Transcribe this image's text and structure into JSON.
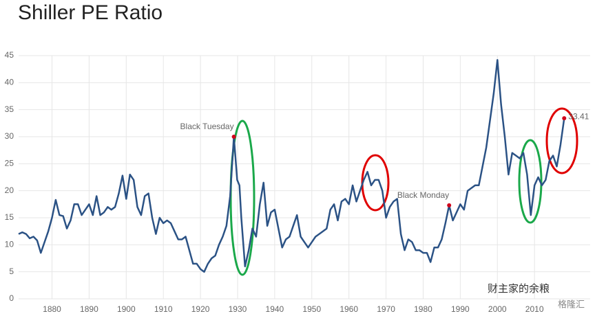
{
  "chart_data": {
    "type": "line",
    "title": "Shiller PE Ratio",
    "x": [
      1871,
      1872,
      1873,
      1874,
      1875,
      1876,
      1877,
      1878,
      1879,
      1880,
      1881,
      1882,
      1883,
      1884,
      1885,
      1886,
      1887,
      1888,
      1889,
      1890,
      1891,
      1892,
      1893,
      1894,
      1895,
      1896,
      1897,
      1898,
      1899,
      1900,
      1901,
      1902,
      1903,
      1904,
      1905,
      1906,
      1907,
      1908,
      1909,
      1910,
      1911,
      1912,
      1913,
      1914,
      1915,
      1916,
      1917,
      1918,
      1919,
      1920,
      1921,
      1922,
      1923,
      1924,
      1925,
      1926,
      1927,
      1928,
      1929,
      1929.9,
      1930.5,
      1931,
      1932,
      1933,
      1934,
      1935,
      1936,
      1937,
      1938,
      1939,
      1940,
      1941,
      1942,
      1943,
      1944,
      1945,
      1946,
      1947,
      1948,
      1949,
      1950,
      1951,
      1952,
      1953,
      1954,
      1955,
      1956,
      1957,
      1958,
      1959,
      1960,
      1961,
      1962,
      1963,
      1964,
      1965,
      1966,
      1967,
      1968,
      1969,
      1970,
      1971,
      1972,
      1973,
      1974,
      1975,
      1976,
      1977,
      1978,
      1979,
      1980,
      1981,
      1982,
      1983,
      1984,
      1985,
      1986,
      1987,
      1988,
      1989,
      1990,
      1991,
      1992,
      1993,
      1994,
      1995,
      1996,
      1997,
      1998,
      1999,
      2000,
      2001,
      2002,
      2003,
      2004,
      2005,
      2006,
      2007,
      2008,
      2009,
      2010,
      2011,
      2012,
      2013,
      2014,
      2015,
      2016,
      2017,
      2018
    ],
    "series": [
      {
        "name": "Shiller PE Ratio",
        "color": "#2b5285",
        "values": [
          12,
          12.3,
          12,
          11.2,
          11.5,
          10.8,
          8.5,
          10.5,
          12.5,
          15,
          18.3,
          15.5,
          15.3,
          13,
          14.5,
          17.5,
          17.5,
          15.5,
          16.5,
          17.5,
          15.5,
          19,
          15.5,
          16,
          17,
          16.5,
          17,
          19.5,
          22.8,
          18.5,
          23,
          22,
          17,
          15.5,
          19,
          19.5,
          15,
          12,
          15,
          14,
          14.5,
          14,
          12.5,
          11,
          11,
          11.5,
          9,
          6.5,
          6.5,
          5.5,
          5,
          6.5,
          7.5,
          8,
          10,
          11.5,
          13.5,
          19,
          30,
          22,
          21,
          15,
          6,
          9,
          13,
          11.5,
          17.5,
          21.5,
          13.5,
          16,
          16.5,
          13,
          9.5,
          11,
          11.5,
          13.5,
          15.5,
          11.5,
          10.5,
          9.5,
          10.5,
          11.5,
          12,
          12.5,
          13,
          16.5,
          17.5,
          14.5,
          18,
          18.5,
          17.5,
          21,
          18,
          20,
          22,
          23.5,
          21,
          22,
          22,
          20,
          15,
          17,
          18,
          18.5,
          12,
          9,
          11,
          10.5,
          9,
          9,
          8.5,
          8.5,
          6.8,
          9.5,
          9.5,
          11,
          14,
          17.3,
          14.5,
          16,
          17.5,
          16.5,
          20,
          20.5,
          21,
          21,
          24.5,
          28,
          33,
          38,
          44.2,
          36,
          30,
          23,
          27,
          26.5,
          26,
          27,
          23,
          15.5,
          21,
          22.5,
          21,
          22,
          25.5,
          26.5,
          24.5,
          28.5,
          33.41
        ]
      }
    ],
    "xlim": [
      1871,
      2025
    ],
    "xticks": [
      1880,
      1890,
      1900,
      1910,
      1920,
      1930,
      1940,
      1950,
      1960,
      1970,
      1980,
      1990,
      2000,
      2010
    ],
    "ylim": [
      0,
      45
    ],
    "yticks": [
      0,
      5,
      10,
      15,
      20,
      25,
      30,
      35,
      40,
      45
    ],
    "grid": true,
    "annotations": [
      {
        "text": "Black Tuesday",
        "x": 1929,
        "y": 30,
        "color": "#d0021b"
      },
      {
        "text": "Black Monday",
        "x": 1987,
        "y": 17.3,
        "color": "#d0021b"
      },
      {
        "text": "33.41",
        "x": 2018,
        "y": 33.41,
        "color": "#d0021b"
      }
    ],
    "watermark": [
      "财主家的余粮",
      "格隆汇"
    ]
  }
}
